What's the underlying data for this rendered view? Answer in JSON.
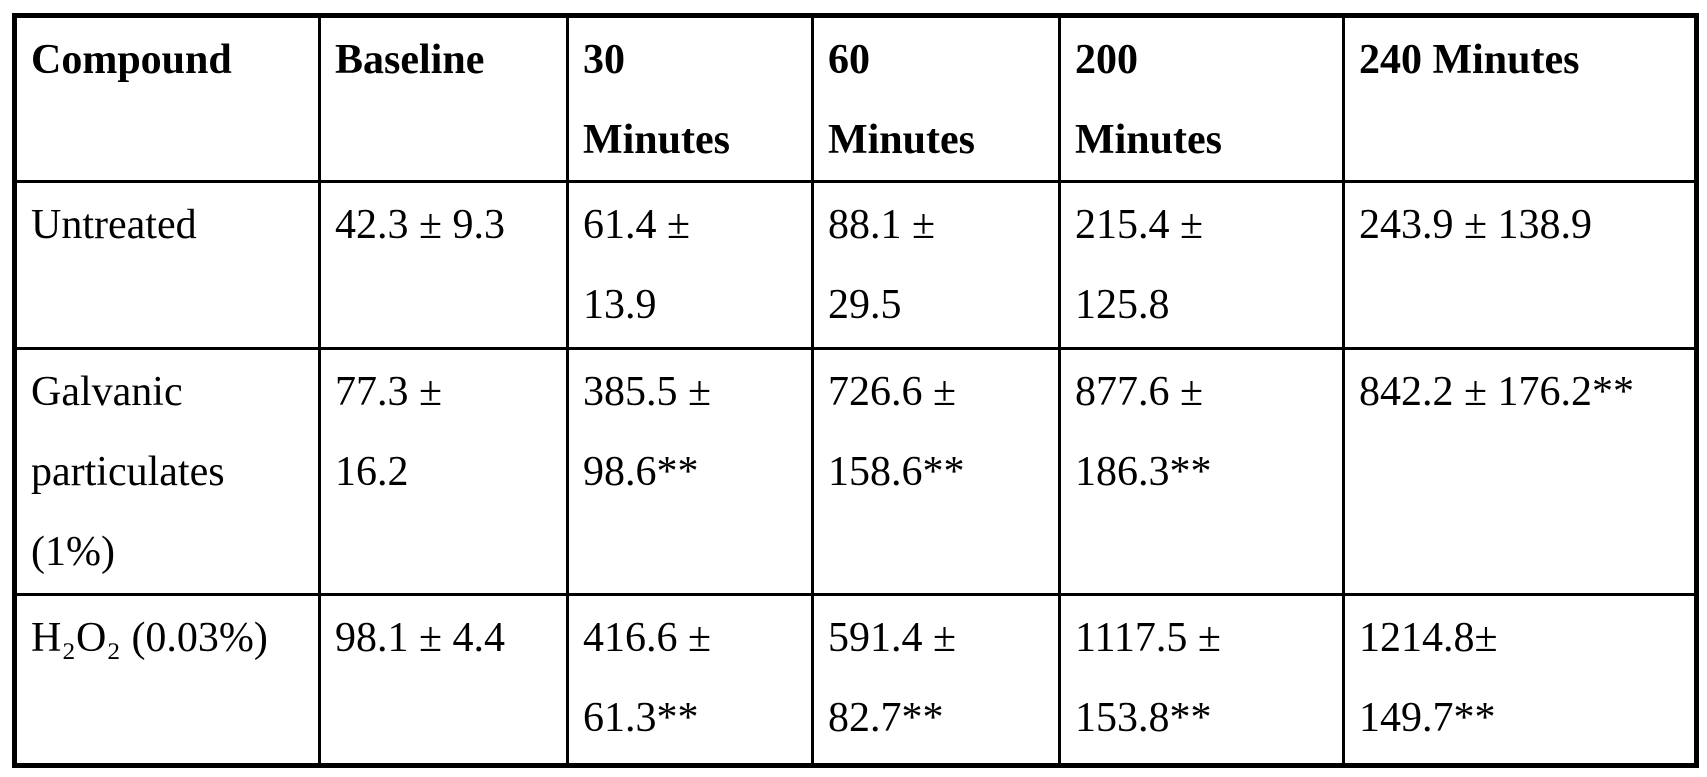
{
  "page": {
    "background_color": "#ffffff",
    "border_color": "#000000"
  },
  "table": {
    "columns": [
      "Compound",
      "Baseline",
      "30\nMinutes",
      "60\nMinutes",
      "200\nMinutes",
      "240 Minutes"
    ],
    "rows": [
      {
        "cells": [
          "Untreated",
          "42.3 ± 9.3",
          "61.4 ±\n13.9",
          "88.1 ±\n29.5",
          "215.4 ±\n125.8",
          "243.9 ± 138.9"
        ]
      },
      {
        "cells": [
          "Galvanic\nparticulates\n(1%)",
          "77.3 ±\n16.2",
          "385.5 ±\n98.6**",
          "726.6 ±\n158.6**",
          "877.6 ±\n186.3**",
          "842.2 ± 176.2**"
        ]
      },
      {
        "cells": [
          "H₂O₂ (0.03%)",
          "98.1 ± 4.4",
          "416.6 ±\n61.3**",
          "591.4 ±\n82.7**",
          "1117.5 ±\n153.8**",
          "1214.8±\n149.7**"
        ]
      }
    ]
  }
}
